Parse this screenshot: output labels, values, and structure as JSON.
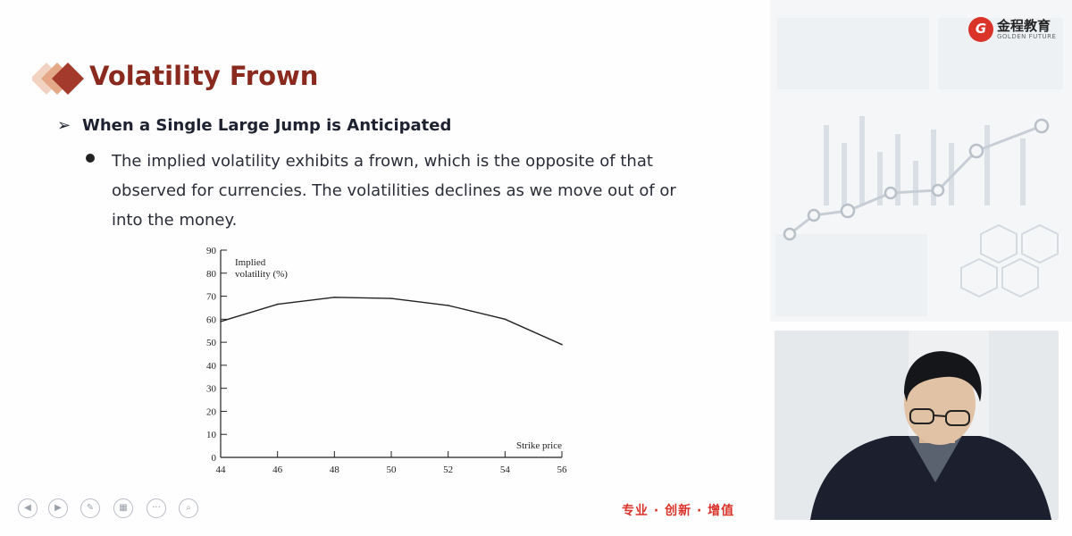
{
  "slide": {
    "title": "Volatility Frown",
    "bullet_heading": "When a Single Large Jump is Anticipated",
    "bullet_text": "The implied volatility exhibits a frown, which is the opposite of that observed for currencies. The volatilities declines as we move out of or into the money."
  },
  "logo": {
    "cn": "金程教育",
    "en": "GOLDEN FUTURE",
    "mark": "G"
  },
  "slogan": "专业 · 创新 · 增值",
  "colors": {
    "title": "#8a2a1e",
    "accent_red": "#d9332a",
    "diamond_1": "#f2d2c0",
    "diamond_2": "#e5a886",
    "diamond_3": "#a33a2c"
  },
  "nav_icons": [
    "prev-icon",
    "next-icon",
    "pen-icon",
    "slides-icon",
    "more-icon",
    "zoom-icon"
  ],
  "chart_data": {
    "type": "line",
    "ylabel": "Implied volatility (%)",
    "xlabel": "Strike price",
    "x": [
      44,
      46,
      48,
      50,
      52,
      54,
      56
    ],
    "y": [
      59,
      66.5,
      69.5,
      69,
      66,
      60,
      49
    ],
    "xlim": [
      44,
      56
    ],
    "ylim": [
      0,
      90
    ],
    "xticks": [
      "44",
      "46",
      "48",
      "50",
      "52",
      "54",
      "56"
    ],
    "yticks": [
      "0",
      "10",
      "20",
      "30",
      "40",
      "50",
      "60",
      "70",
      "80",
      "90"
    ],
    "ylabel_lines": [
      "Implied",
      "volatility (%)"
    ],
    "grid": false
  }
}
